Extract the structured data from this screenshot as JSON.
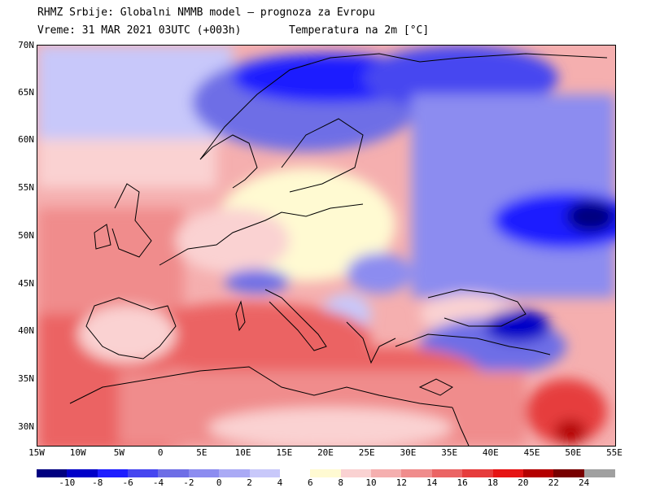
{
  "header": {
    "line1": "RHMZ Srbije: Globalni NMMB model — prognoza za Evropu",
    "line2_time": "Vreme: 31 MAR 2021 03UTC (+003h)",
    "line2_field": "Temperatura na 2m [°C]"
  },
  "map": {
    "lat_labels": [
      "70N",
      "65N",
      "60N",
      "55N",
      "50N",
      "45N",
      "40N",
      "35N",
      "30N"
    ],
    "lon_labels": [
      "15W",
      "10W",
      "5W",
      "0",
      "5E",
      "10E",
      "15E",
      "20E",
      "25E",
      "30E",
      "35E",
      "40E",
      "45E",
      "50E",
      "55E"
    ]
  },
  "colorbar": {
    "labels": [
      "-10",
      "-8",
      "-6",
      "-4",
      "-2",
      "0",
      "2",
      "4",
      "6",
      "8",
      "10",
      "12",
      "14",
      "16",
      "18",
      "20",
      "22",
      "24"
    ],
    "colors": [
      "#000080",
      "#0000c8",
      "#1e1eff",
      "#4646f0",
      "#6e6ee6",
      "#8c8cf0",
      "#aaaaf5",
      "#c8c8fa",
      "#ffffff",
      "#fffad2",
      "#fad2d2",
      "#f5afaf",
      "#f08c8c",
      "#eb6464",
      "#e63c3c",
      "#e61414",
      "#b40000",
      "#780000",
      "#a0a0a0"
    ]
  }
}
